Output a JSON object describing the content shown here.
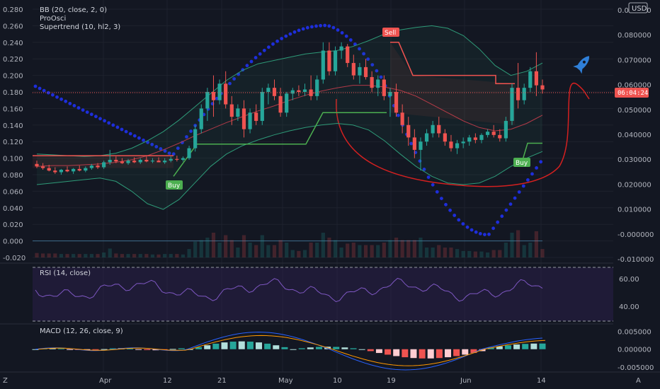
{
  "currency": "USD",
  "legend": {
    "bb": "BB (20, close, 2, 0)",
    "proosci": "ProOsci",
    "supertrend": "Supertrend (10, hl2, 3)",
    "rsi": "RSI (14, close)",
    "macd": "MACD (12, 26, close, 9)"
  },
  "signals": {
    "buy": "Buy",
    "sell": "Sell"
  },
  "last_price_countdown": "06:04:24",
  "footer": {
    "left": "Z",
    "right": "A"
  },
  "colors": {
    "background": "#131722",
    "up": "#26a69a",
    "down": "#ef5350",
    "supertrend_up": "#4caf50",
    "supertrend_down": "#f05350",
    "bb_band": "#2e9a78",
    "bb_basis": "#b23a48",
    "proosci_dots": "#1e2edb",
    "proosci_curve": "#d42020",
    "rsi_line": "#7e57c2",
    "rocket": "#2f7fd8"
  },
  "chart_data": [
    {
      "type": "line",
      "title": "",
      "axis_labels": {
        "price_left": [
          "0.280",
          "0.260",
          "0.240",
          "0.220",
          "0.200",
          "0.180",
          "0.160",
          "0.140",
          "0.120",
          "0.100",
          "0.080",
          "0.060",
          "0.040",
          "0.020",
          "0.000",
          "-0.020"
        ],
        "osc_right": [
          "0.090000",
          "0.080000",
          "0.070000",
          "0.060000",
          "0.050000",
          "0.040000",
          "0.030000",
          "0.020000",
          "0.010000",
          "-0.000000",
          "-0.010000"
        ],
        "x_ticks": [
          "Apr",
          "12",
          "21",
          "May",
          "10",
          "19",
          "Jun",
          "14"
        ]
      },
      "price_range": [
        -0.02,
        0.28
      ],
      "candles_ohlc": [
        [
          0.093,
          0.097,
          0.088,
          0.09
        ],
        [
          0.09,
          0.094,
          0.086,
          0.088
        ],
        [
          0.088,
          0.092,
          0.084,
          0.085
        ],
        [
          0.085,
          0.089,
          0.081,
          0.083
        ],
        [
          0.083,
          0.087,
          0.08,
          0.086
        ],
        [
          0.086,
          0.09,
          0.083,
          0.084
        ],
        [
          0.084,
          0.088,
          0.081,
          0.087
        ],
        [
          0.087,
          0.091,
          0.084,
          0.085
        ],
        [
          0.085,
          0.09,
          0.083,
          0.088
        ],
        [
          0.088,
          0.093,
          0.086,
          0.091
        ],
        [
          0.091,
          0.094,
          0.087,
          0.089
        ],
        [
          0.089,
          0.097,
          0.087,
          0.095
        ],
        [
          0.095,
          0.11,
          0.092,
          0.098
        ],
        [
          0.098,
          0.102,
          0.094,
          0.096
        ],
        [
          0.096,
          0.1,
          0.093,
          0.094
        ],
        [
          0.094,
          0.099,
          0.092,
          0.097
        ],
        [
          0.097,
          0.101,
          0.094,
          0.095
        ],
        [
          0.095,
          0.1,
          0.093,
          0.098
        ],
        [
          0.098,
          0.102,
          0.095,
          0.096
        ],
        [
          0.096,
          0.1,
          0.094,
          0.097
        ],
        [
          0.097,
          0.101,
          0.095,
          0.095
        ],
        [
          0.095,
          0.1,
          0.093,
          0.097
        ],
        [
          0.097,
          0.102,
          0.095,
          0.099
        ],
        [
          0.099,
          0.103,
          0.096,
          0.098
        ],
        [
          0.098,
          0.102,
          0.096,
          0.1
        ],
        [
          0.1,
          0.115,
          0.098,
          0.112
        ],
        [
          0.112,
          0.14,
          0.108,
          0.135
        ],
        [
          0.135,
          0.165,
          0.13,
          0.16
        ],
        [
          0.16,
          0.185,
          0.145,
          0.18
        ],
        [
          0.18,
          0.2,
          0.15,
          0.17
        ],
        [
          0.17,
          0.195,
          0.165,
          0.19
        ],
        [
          0.19,
          0.205,
          0.16,
          0.165
        ],
        [
          0.165,
          0.175,
          0.14,
          0.15
        ],
        [
          0.15,
          0.165,
          0.145,
          0.16
        ],
        [
          0.16,
          0.17,
          0.125,
          0.135
        ],
        [
          0.135,
          0.16,
          0.13,
          0.155
        ],
        [
          0.155,
          0.165,
          0.14,
          0.145
        ],
        [
          0.145,
          0.185,
          0.14,
          0.18
        ],
        [
          0.18,
          0.19,
          0.165,
          0.185
        ],
        [
          0.185,
          0.195,
          0.17,
          0.175
        ],
        [
          0.175,
          0.185,
          0.15,
          0.155
        ],
        [
          0.155,
          0.18,
          0.15,
          0.178
        ],
        [
          0.178,
          0.185,
          0.17,
          0.182
        ],
        [
          0.182,
          0.188,
          0.175,
          0.18
        ],
        [
          0.18,
          0.19,
          0.175,
          0.183
        ],
        [
          0.183,
          0.2,
          0.17,
          0.175
        ],
        [
          0.175,
          0.2,
          0.17,
          0.195
        ],
        [
          0.195,
          0.24,
          0.19,
          0.23
        ],
        [
          0.23,
          0.24,
          0.2,
          0.205
        ],
        [
          0.205,
          0.235,
          0.2,
          0.23
        ],
        [
          0.23,
          0.24,
          0.22,
          0.235
        ],
        [
          0.235,
          0.238,
          0.21,
          0.215
        ],
        [
          0.215,
          0.225,
          0.195,
          0.2
        ],
        [
          0.2,
          0.215,
          0.19,
          0.21
        ],
        [
          0.21,
          0.22,
          0.195,
          0.198
        ],
        [
          0.198,
          0.205,
          0.18,
          0.185
        ],
        [
          0.185,
          0.2,
          0.175,
          0.195
        ],
        [
          0.195,
          0.2,
          0.17,
          0.175
        ],
        [
          0.175,
          0.185,
          0.15,
          0.18
        ],
        [
          0.18,
          0.19,
          0.15,
          0.155
        ],
        [
          0.155,
          0.165,
          0.13,
          0.14
        ],
        [
          0.14,
          0.15,
          0.115,
          0.125
        ],
        [
          0.125,
          0.135,
          0.1,
          0.11
        ],
        [
          0.11,
          0.125,
          0.085,
          0.12
        ],
        [
          0.12,
          0.135,
          0.115,
          0.13
        ],
        [
          0.13,
          0.145,
          0.125,
          0.14
        ],
        [
          0.14,
          0.15,
          0.125,
          0.13
        ],
        [
          0.13,
          0.135,
          0.115,
          0.12
        ],
        [
          0.12,
          0.128,
          0.108,
          0.112
        ],
        [
          0.112,
          0.122,
          0.105,
          0.118
        ],
        [
          0.118,
          0.125,
          0.112,
          0.12
        ],
        [
          0.12,
          0.128,
          0.115,
          0.125
        ],
        [
          0.125,
          0.13,
          0.118,
          0.122
        ],
        [
          0.122,
          0.13,
          0.118,
          0.128
        ],
        [
          0.128,
          0.135,
          0.125,
          0.132
        ],
        [
          0.132,
          0.14,
          0.125,
          0.128
        ],
        [
          0.128,
          0.135,
          0.12,
          0.124
        ],
        [
          0.124,
          0.15,
          0.12,
          0.145
        ],
        [
          0.145,
          0.19,
          0.14,
          0.185
        ],
        [
          0.185,
          0.215,
          0.16,
          0.17
        ],
        [
          0.17,
          0.19,
          0.165,
          0.185
        ],
        [
          0.185,
          0.21,
          0.18,
          0.205
        ],
        [
          0.205,
          0.228,
          0.175,
          0.188
        ],
        [
          0.188,
          0.195,
          0.178,
          0.183
        ]
      ],
      "series": [
        {
          "name": "BB upper",
          "values": [
            0.105,
            0.104,
            0.103,
            0.102,
            0.103,
            0.106,
            0.112,
            0.121,
            0.132,
            0.146,
            0.162,
            0.178,
            0.194,
            0.206,
            0.214,
            0.218,
            0.222,
            0.226,
            0.228,
            0.23,
            0.235,
            0.242,
            0.25,
            0.255,
            0.258,
            0.26,
            0.257,
            0.248,
            0.232,
            0.212,
            0.2,
            0.205,
            0.215
          ]
        },
        {
          "name": "BB basis",
          "values": [
            0.09,
            0.091,
            0.091,
            0.092,
            0.093,
            0.095,
            0.098,
            0.103,
            0.11,
            0.118,
            0.127,
            0.135,
            0.143,
            0.15,
            0.157,
            0.163,
            0.17,
            0.176,
            0.181,
            0.185,
            0.188,
            0.188,
            0.186,
            0.182,
            0.175,
            0.165,
            0.155,
            0.145,
            0.137,
            0.133,
            0.135,
            0.142,
            0.152
          ]
        },
        {
          "name": "BB lower",
          "values": [
            0.068,
            0.07,
            0.072,
            0.074,
            0.076,
            0.072,
            0.06,
            0.045,
            0.038,
            0.05,
            0.07,
            0.09,
            0.105,
            0.115,
            0.122,
            0.128,
            0.133,
            0.137,
            0.14,
            0.142,
            0.14,
            0.134,
            0.121,
            0.105,
            0.09,
            0.078,
            0.07,
            0.068,
            0.07,
            0.078,
            0.09,
            0.1,
            0.108
          ]
        }
      ],
      "supertrend": {
        "down_before": 0.103,
        "up_levels": [
          0.078,
          0.117,
          0.117,
          0.155,
          0.155,
          0.155
        ],
        "down_after": [
          0.24,
          0.2,
          0.2,
          0.2,
          0.2,
          0.19
        ],
        "final_up": 0.118
      }
    },
    {
      "type": "line",
      "title": "",
      "axis_labels": {
        "y": [
          "60.00",
          "40.00"
        ]
      },
      "y_range": [
        30,
        70
      ]
    },
    {
      "type": "bar",
      "title": "",
      "axis_labels": {
        "y": [
          "0.005000",
          "0.000000",
          "-0.005000"
        ]
      },
      "y_range": [
        -0.006,
        0.0055
      ]
    }
  ]
}
